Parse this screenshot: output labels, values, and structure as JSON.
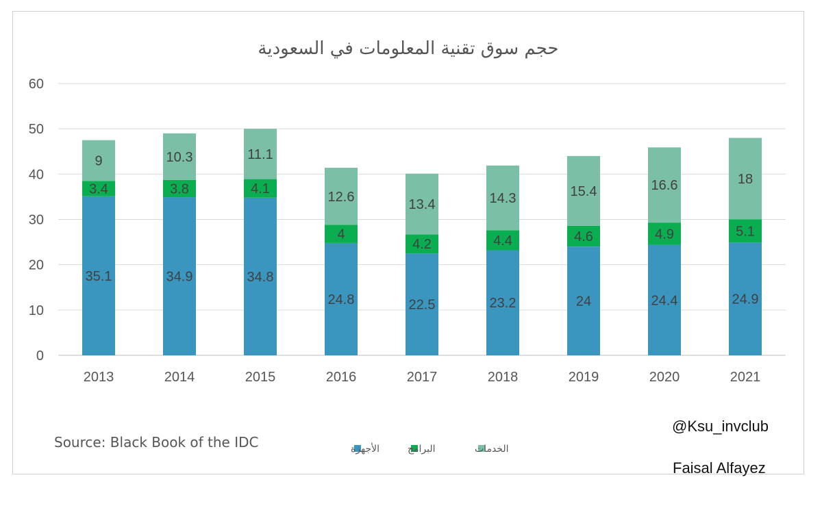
{
  "chart_data": {
    "type": "bar",
    "stacked": true,
    "title": "حجم سوق تقنية المعلومات في السعودية",
    "categories": [
      "2013",
      "2014",
      "2015",
      "2016",
      "2017",
      "2018",
      "2019",
      "2020",
      "2021"
    ],
    "series": [
      {
        "name": "الأجهزة",
        "color": "#3a96bf",
        "values": [
          35.1,
          34.9,
          34.8,
          24.8,
          22.5,
          23.2,
          24,
          24.4,
          24.9
        ]
      },
      {
        "name": "البرامج",
        "color": "#0aae50",
        "values": [
          3.4,
          3.8,
          4.1,
          4,
          4.2,
          4.4,
          4.6,
          4.9,
          5.1
        ]
      },
      {
        "name": "الخدمات",
        "color": "#7bbfa6",
        "values": [
          9,
          10.3,
          11.1,
          12.6,
          13.4,
          14.3,
          15.4,
          16.6,
          18
        ]
      }
    ],
    "ylim": [
      0,
      60
    ],
    "yticks": [
      0,
      10,
      20,
      30,
      40,
      50,
      60
    ],
    "grid": true,
    "legend_position": "bottom",
    "xlabel": "",
    "ylabel": ""
  },
  "footer": {
    "source": "Source: Black Book of the IDC",
    "handle": "@Ksu_invclub",
    "author": "Faisal Alfayez"
  }
}
